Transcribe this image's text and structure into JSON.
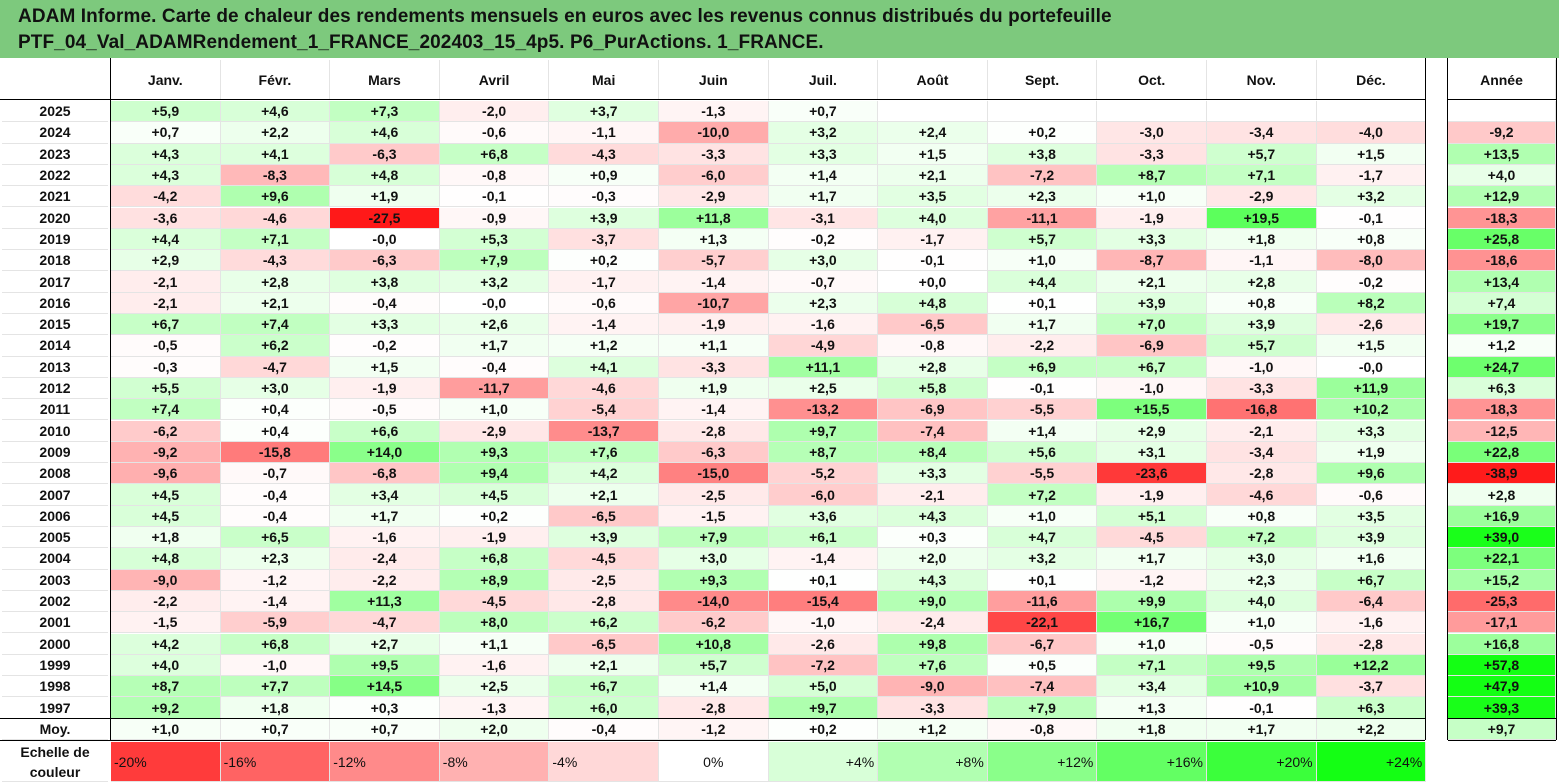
{
  "title": {
    "line1": "ADAM Informe. Carte de chaleur des rendements mensuels en euros avec les revenus connus distribués du portefeuille",
    "line2": "PTF_04_Val_ADAMRendement_1_FRANCE_202403_15_4p5. P6_PurActions. 1_FRANCE."
  },
  "chart_data": {
    "type": "heatmap",
    "columns": [
      "Janv.",
      "Févr.",
      "Mars",
      "Avril",
      "Mai",
      "Juin",
      "Juil.",
      "Août",
      "Sept.",
      "Oct.",
      "Nov.",
      "Déc."
    ],
    "year_column": "Année",
    "rows": [
      {
        "label": "2025",
        "values": [
          "+5,9",
          "+4,6",
          "+7,3",
          "-2,0",
          "+3,7",
          "-1,3",
          "+0,7",
          "",
          "",
          "",
          "",
          ""
        ],
        "year": ""
      },
      {
        "label": "2024",
        "values": [
          "+0,7",
          "+2,2",
          "+4,6",
          "-0,6",
          "-1,1",
          "-10,0",
          "+3,2",
          "+2,4",
          "+0,2",
          "-3,0",
          "-3,4",
          "-4,0"
        ],
        "year": "-9,2"
      },
      {
        "label": "2023",
        "values": [
          "+4,3",
          "+4,1",
          "-6,3",
          "+6,8",
          "-4,3",
          "-3,3",
          "+3,3",
          "+1,5",
          "+3,8",
          "-3,3",
          "+5,7",
          "+1,5"
        ],
        "year": "+13,5"
      },
      {
        "label": "2022",
        "values": [
          "+4,3",
          "-8,3",
          "+4,8",
          "-0,8",
          "+0,9",
          "-6,0",
          "+1,4",
          "+2,1",
          "-7,2",
          "+8,7",
          "+7,1",
          "-1,7"
        ],
        "year": "+4,0"
      },
      {
        "label": "2021",
        "values": [
          "-4,2",
          "+9,6",
          "+1,9",
          "-0,1",
          "-0,3",
          "-2,9",
          "+1,7",
          "+3,5",
          "+2,3",
          "+1,0",
          "-2,9",
          "+3,2"
        ],
        "year": "+12,9"
      },
      {
        "label": "2020",
        "values": [
          "-3,6",
          "-4,6",
          "-27,5",
          "-0,9",
          "+3,9",
          "+11,8",
          "-3,1",
          "+4,0",
          "-11,1",
          "-1,9",
          "+19,5",
          "-0,1"
        ],
        "year": "-18,3"
      },
      {
        "label": "2019",
        "values": [
          "+4,4",
          "+7,1",
          "-0,0",
          "+5,3",
          "-3,7",
          "+1,3",
          "-0,2",
          "-1,7",
          "+5,7",
          "+3,3",
          "+1,8",
          "+0,8"
        ],
        "year": "+25,8"
      },
      {
        "label": "2018",
        "values": [
          "+2,9",
          "-4,3",
          "-6,3",
          "+7,9",
          "+0,2",
          "-5,7",
          "+3,0",
          "-0,1",
          "+1,0",
          "-8,7",
          "-1,1",
          "-8,0"
        ],
        "year": "-18,6"
      },
      {
        "label": "2017",
        "values": [
          "-2,1",
          "+2,8",
          "+3,8",
          "+3,2",
          "-1,7",
          "-1,4",
          "-0,7",
          "+0,0",
          "+4,4",
          "+2,1",
          "+2,8",
          "-0,2"
        ],
        "year": "+13,4"
      },
      {
        "label": "2016",
        "values": [
          "-2,1",
          "+2,1",
          "-0,4",
          "-0,0",
          "-0,6",
          "-10,7",
          "+2,3",
          "+4,8",
          "+0,1",
          "+3,9",
          "+0,8",
          "+8,2"
        ],
        "year": "+7,4"
      },
      {
        "label": "2015",
        "values": [
          "+6,7",
          "+7,4",
          "+3,3",
          "+2,6",
          "-1,4",
          "-1,9",
          "-1,6",
          "-6,5",
          "+1,7",
          "+7,0",
          "+3,9",
          "-2,6"
        ],
        "year": "+19,7"
      },
      {
        "label": "2014",
        "values": [
          "-0,5",
          "+6,2",
          "-0,2",
          "+1,7",
          "+1,2",
          "+1,1",
          "-4,9",
          "-0,8",
          "-2,2",
          "-6,9",
          "+5,7",
          "+1,5"
        ],
        "year": "+1,2"
      },
      {
        "label": "2013",
        "values": [
          "-0,3",
          "-4,7",
          "+1,5",
          "-0,4",
          "+4,1",
          "-3,3",
          "+11,1",
          "+2,8",
          "+6,9",
          "+6,7",
          "-1,0",
          "-0,0"
        ],
        "year": "+24,7"
      },
      {
        "label": "2012",
        "values": [
          "+5,5",
          "+3,0",
          "-1,9",
          "-11,7",
          "-4,6",
          "+1,9",
          "+2,5",
          "+5,8",
          "-0,1",
          "-1,0",
          "-3,3",
          "+11,9"
        ],
        "year": "+6,3"
      },
      {
        "label": "2011",
        "values": [
          "+7,4",
          "+0,4",
          "-0,5",
          "+1,0",
          "-5,4",
          "-1,4",
          "-13,2",
          "-6,9",
          "-5,5",
          "+15,5",
          "-16,8",
          "+10,2"
        ],
        "year": "-18,3"
      },
      {
        "label": "2010",
        "values": [
          "-6,2",
          "+0,4",
          "+6,6",
          "-2,9",
          "-13,7",
          "-2,8",
          "+9,7",
          "-7,4",
          "+1,4",
          "+2,9",
          "-2,1",
          "+3,3"
        ],
        "year": "-12,5"
      },
      {
        "label": "2009",
        "values": [
          "-9,2",
          "-15,8",
          "+14,0",
          "+9,3",
          "+7,6",
          "-6,3",
          "+8,7",
          "+8,4",
          "+5,6",
          "+3,1",
          "-3,4",
          "+1,9"
        ],
        "year": "+22,8"
      },
      {
        "label": "2008",
        "values": [
          "-9,6",
          "-0,7",
          "-6,8",
          "+9,4",
          "+4,2",
          "-15,0",
          "-5,2",
          "+3,3",
          "-5,5",
          "-23,6",
          "-2,8",
          "+9,6"
        ],
        "year": "-38,9"
      },
      {
        "label": "2007",
        "values": [
          "+4,5",
          "-0,4",
          "+3,4",
          "+4,5",
          "+2,1",
          "-2,5",
          "-6,0",
          "-2,1",
          "+7,2",
          "-1,9",
          "-4,6",
          "-0,6"
        ],
        "year": "+2,8"
      },
      {
        "label": "2006",
        "values": [
          "+4,5",
          "-0,4",
          "+1,7",
          "+0,2",
          "-6,5",
          "-1,5",
          "+3,6",
          "+4,3",
          "+1,0",
          "+5,1",
          "+0,8",
          "+3,5"
        ],
        "year": "+16,9"
      },
      {
        "label": "2005",
        "values": [
          "+1,8",
          "+6,5",
          "-1,6",
          "-1,9",
          "+3,9",
          "+7,9",
          "+6,1",
          "+0,3",
          "+4,7",
          "-4,5",
          "+7,2",
          "+3,9"
        ],
        "year": "+39,0"
      },
      {
        "label": "2004",
        "values": [
          "+4,8",
          "+2,3",
          "-2,4",
          "+6,8",
          "-4,5",
          "+3,0",
          "-1,4",
          "+2,0",
          "+3,2",
          "+1,7",
          "+3,0",
          "+1,6"
        ],
        "year": "+22,1"
      },
      {
        "label": "2003",
        "values": [
          "-9,0",
          "-1,2",
          "-2,2",
          "+8,9",
          "-2,5",
          "+9,3",
          "+0,1",
          "+4,3",
          "+0,1",
          "-1,2",
          "+2,3",
          "+6,7"
        ],
        "year": "+15,2"
      },
      {
        "label": "2002",
        "values": [
          "-2,2",
          "-1,4",
          "+11,3",
          "-4,5",
          "-2,8",
          "-14,0",
          "-15,4",
          "+9,0",
          "-11,6",
          "+9,9",
          "+4,0",
          "-6,4"
        ],
        "year": "-25,3"
      },
      {
        "label": "2001",
        "values": [
          "-1,5",
          "-5,9",
          "-4,7",
          "+8,0",
          "+6,2",
          "-6,2",
          "-1,0",
          "-2,4",
          "-22,1",
          "+16,7",
          "+1,0",
          "-1,6"
        ],
        "year": "-17,1"
      },
      {
        "label": "2000",
        "values": [
          "+4,2",
          "+6,8",
          "+2,7",
          "+1,1",
          "-6,5",
          "+10,8",
          "-2,6",
          "+9,8",
          "-6,7",
          "+1,0",
          "-0,5",
          "-2,8"
        ],
        "year": "+16,8"
      },
      {
        "label": "1999",
        "values": [
          "+4,0",
          "-1,0",
          "+9,5",
          "-1,6",
          "+2,1",
          "+5,7",
          "-7,2",
          "+7,6",
          "+0,5",
          "+7,1",
          "+9,5",
          "+12,2"
        ],
        "year": "+57,8"
      },
      {
        "label": "1998",
        "values": [
          "+8,7",
          "+7,7",
          "+14,5",
          "+2,5",
          "+6,7",
          "+1,4",
          "+5,0",
          "-9,0",
          "-7,4",
          "+3,4",
          "+10,9",
          "-3,7"
        ],
        "year": "+47,9"
      },
      {
        "label": "1997",
        "values": [
          "+9,2",
          "+1,8",
          "+0,3",
          "-1,3",
          "+6,0",
          "-2,8",
          "+9,7",
          "-3,3",
          "+7,9",
          "+1,3",
          "-0,1",
          "+6,3"
        ],
        "year": "+39,3"
      },
      {
        "label": "Moy.",
        "values": [
          "+1,0",
          "+0,7",
          "+0,7",
          "+2,0",
          "-0,4",
          "-1,2",
          "+0,2",
          "+1,2",
          "-0,8",
          "+1,8",
          "+1,7",
          "+2,2"
        ],
        "year": "+9,7"
      }
    ],
    "scale": {
      "label_line1": "Echelle de",
      "label_line2": "couleur",
      "steps": [
        "-20%",
        "-16%",
        "-12%",
        "-8%",
        "-4%",
        "0%",
        "+4%",
        "+8%",
        "+12%",
        "+16%",
        "+20%",
        "+24%"
      ],
      "step_values": [
        -20,
        -16,
        -12,
        -8,
        -4,
        0,
        4,
        8,
        12,
        16,
        20,
        24
      ]
    },
    "colors": {
      "negative": "#ff0000",
      "positive": "#00ff00",
      "neutral": "#ffffff",
      "header": "#7dc97d"
    }
  }
}
